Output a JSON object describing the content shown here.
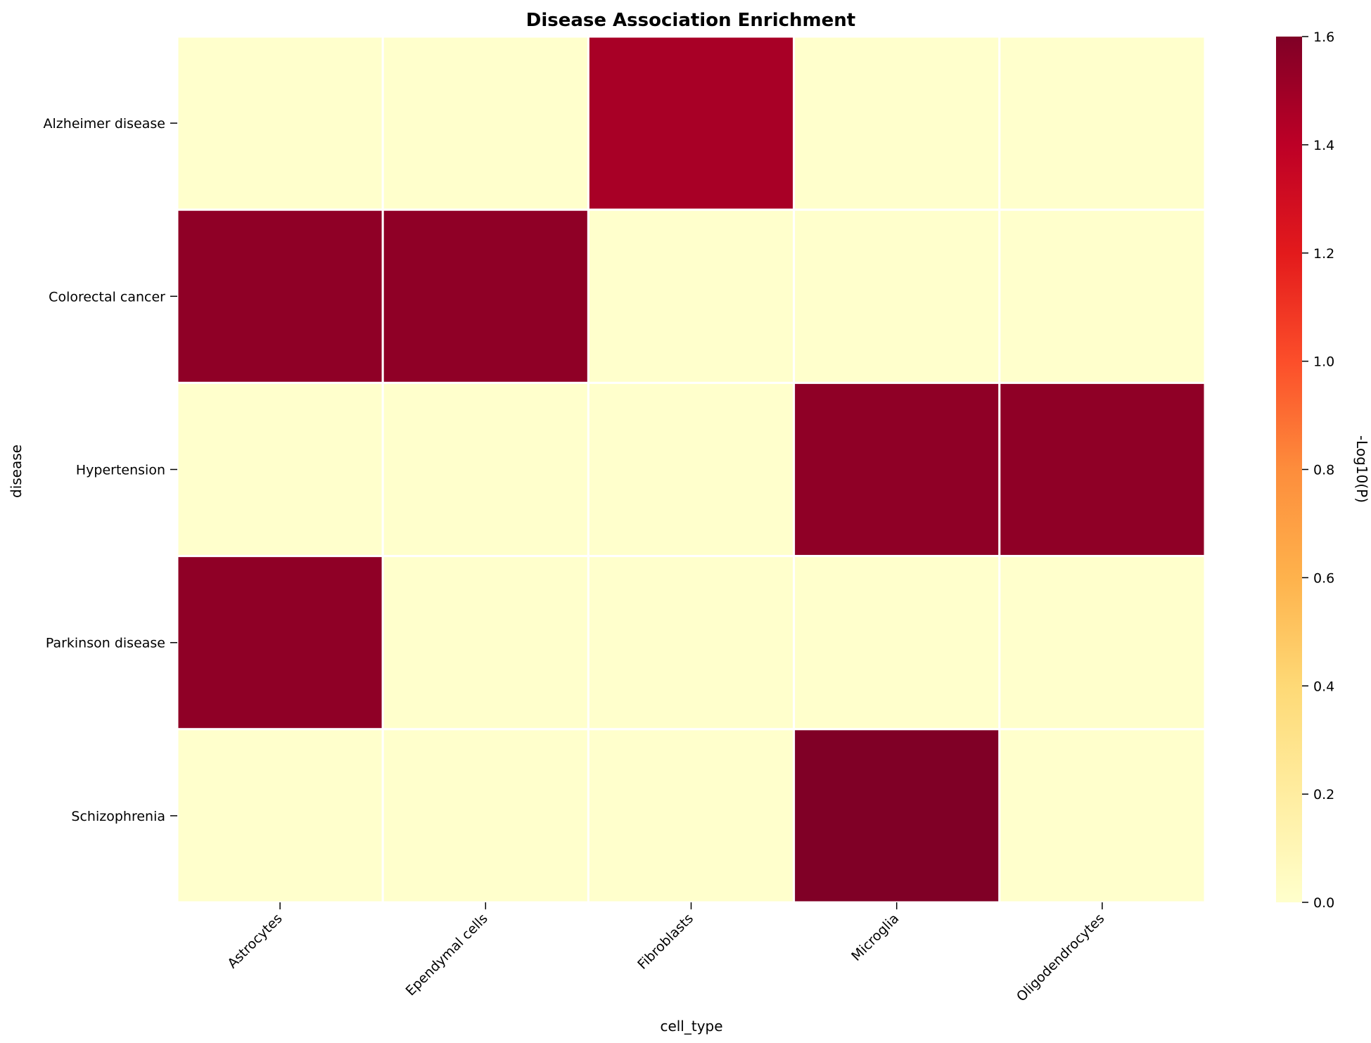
{
  "chart_data": {
    "type": "heatmap",
    "title": "Disease Association Enrichment",
    "xlabel": "cell_type",
    "ylabel": "disease",
    "x_categories": [
      "Astrocytes",
      "Ependymal cells",
      "Fibroblasts",
      "Microglia",
      "Oligodendrocytes"
    ],
    "y_categories": [
      "Alzheimer disease",
      "Colorectal cancer",
      "Hypertension",
      "Parkinson disease",
      "Schizophrenia"
    ],
    "values": [
      [
        0,
        0,
        1.47,
        0,
        0
      ],
      [
        1.55,
        1.55,
        0,
        0,
        0
      ],
      [
        0,
        0,
        0,
        1.55,
        1.55
      ],
      [
        1.55,
        0,
        0,
        0,
        0
      ],
      [
        0,
        0,
        0,
        1.6,
        0
      ]
    ],
    "colorbar": {
      "label": "-Log10(P)",
      "range": [
        0,
        1.6
      ],
      "ticks": [
        "0.0",
        "0.2",
        "0.4",
        "0.6",
        "0.8",
        "1.0",
        "1.2",
        "1.4",
        "1.6"
      ],
      "colormap": "YlOrRd",
      "colors": [
        "#ffffcc",
        "#ffeda0",
        "#fed976",
        "#feb24c",
        "#fd8d3c",
        "#fc4e2a",
        "#e31a1c",
        "#bd0026",
        "#800026"
      ]
    },
    "grid_line_color": "#ffffff"
  }
}
